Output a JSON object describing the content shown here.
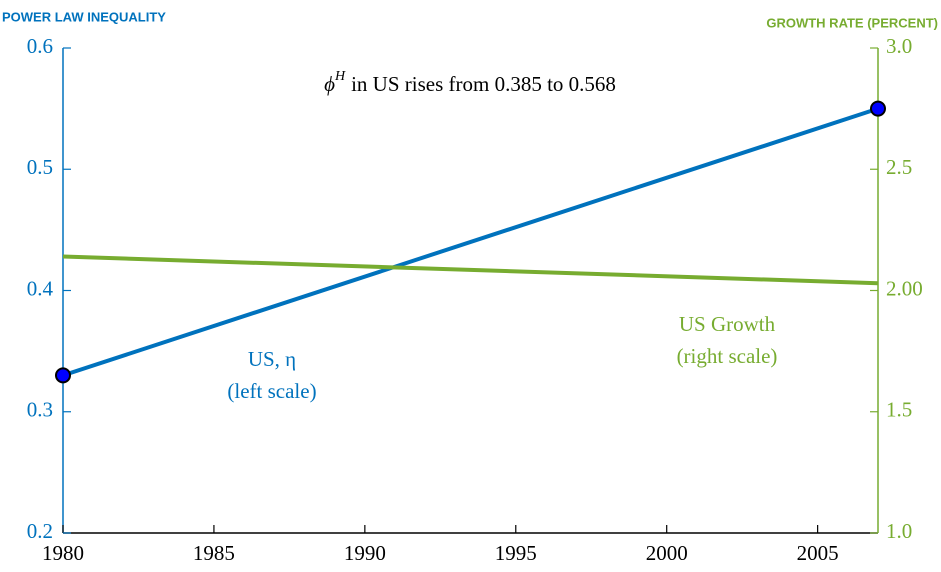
{
  "chart_data": {
    "type": "line",
    "left_axis_title": "POWER LAW INEQUALITY",
    "right_axis_title": "GROWTH RATE (PERCENT)",
    "annotation": {
      "symbol": "ϕ",
      "superscript": "H",
      "text": "in US rises from 0.385 to 0.568"
    },
    "x": [
      1980,
      2007
    ],
    "xlim": [
      1980,
      2007
    ],
    "xticks": [
      1980,
      1985,
      1990,
      1995,
      2000,
      2005
    ],
    "ylim": [
      0.2,
      0.6
    ],
    "yticks": [
      0.2,
      0.3,
      0.4,
      0.5,
      0.6
    ],
    "y2lim": [
      1,
      3
    ],
    "y2ticks": [
      {
        "value": 1,
        "label": "1.0"
      },
      1.5,
      {
        "value": 2,
        "label": "2.00"
      },
      2.5,
      {
        "value": 3,
        "label": "3.0"
      }
    ],
    "series": [
      {
        "name": "US, η",
        "note": "(left scale)",
        "color": "#0072bd",
        "marker_color": "#0000ff",
        "markers": true,
        "values": [
          0.33,
          0.55
        ]
      },
      {
        "name": "US Growth",
        "note": "(right scale)",
        "color": "#77ac30",
        "markers": false,
        "axis": "y2",
        "values": [
          2.14,
          2.03
        ]
      }
    ]
  }
}
